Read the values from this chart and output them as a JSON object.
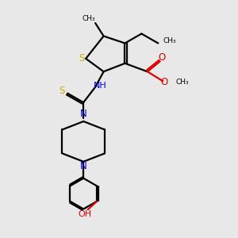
{
  "bg_color": "#e8e8e8",
  "bond_color": "#000000",
  "S_color": "#ccaa00",
  "N_color": "#0000ee",
  "O_color": "#dd0000",
  "line_width": 1.6,
  "fig_size": [
    3.0,
    3.0
  ],
  "dpi": 100,
  "xlim": [
    0,
    10
  ],
  "ylim": [
    0,
    10
  ]
}
